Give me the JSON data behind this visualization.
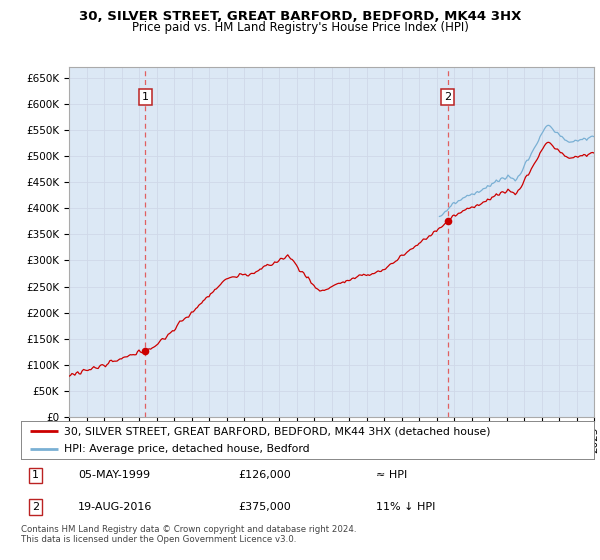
{
  "title": "30, SILVER STREET, GREAT BARFORD, BEDFORD, MK44 3HX",
  "subtitle": "Price paid vs. HM Land Registry's House Price Index (HPI)",
  "ylabel_ticks": [
    "£0",
    "£50K",
    "£100K",
    "£150K",
    "£200K",
    "£250K",
    "£300K",
    "£350K",
    "£400K",
    "£450K",
    "£500K",
    "£550K",
    "£600K",
    "£650K"
  ],
  "ytick_values": [
    0,
    50000,
    100000,
    150000,
    200000,
    250000,
    300000,
    350000,
    400000,
    450000,
    500000,
    550000,
    600000,
    650000
  ],
  "ylim": [
    0,
    670000
  ],
  "xlim_start": 1995.3,
  "xlim_end": 2025.0,
  "sale1_date": 1999.35,
  "sale1_price": 126000,
  "sale1_label": "1",
  "sale2_date": 2016.63,
  "sale2_price": 375000,
  "sale2_label": "2",
  "hpi_color": "#7ab0d4",
  "price_color": "#cc0000",
  "dashed_color": "#e06060",
  "grid_color": "#d0d8e8",
  "background_color": "#ffffff",
  "plot_bg_color": "#dce8f5",
  "legend_label1": "30, SILVER STREET, GREAT BARFORD, BEDFORD, MK44 3HX (detached house)",
  "legend_label2": "HPI: Average price, detached house, Bedford",
  "table_row1": [
    "1",
    "05-MAY-1999",
    "£126,000",
    "≈ HPI"
  ],
  "table_row2": [
    "2",
    "19-AUG-2016",
    "£375,000",
    "11% ↓ HPI"
  ],
  "footnote": "Contains HM Land Registry data © Crown copyright and database right 2024.\nThis data is licensed under the Open Government Licence v3.0.",
  "title_fontsize": 9.5,
  "subtitle_fontsize": 8.5,
  "tick_fontsize": 7.5,
  "legend_fontsize": 7.8
}
